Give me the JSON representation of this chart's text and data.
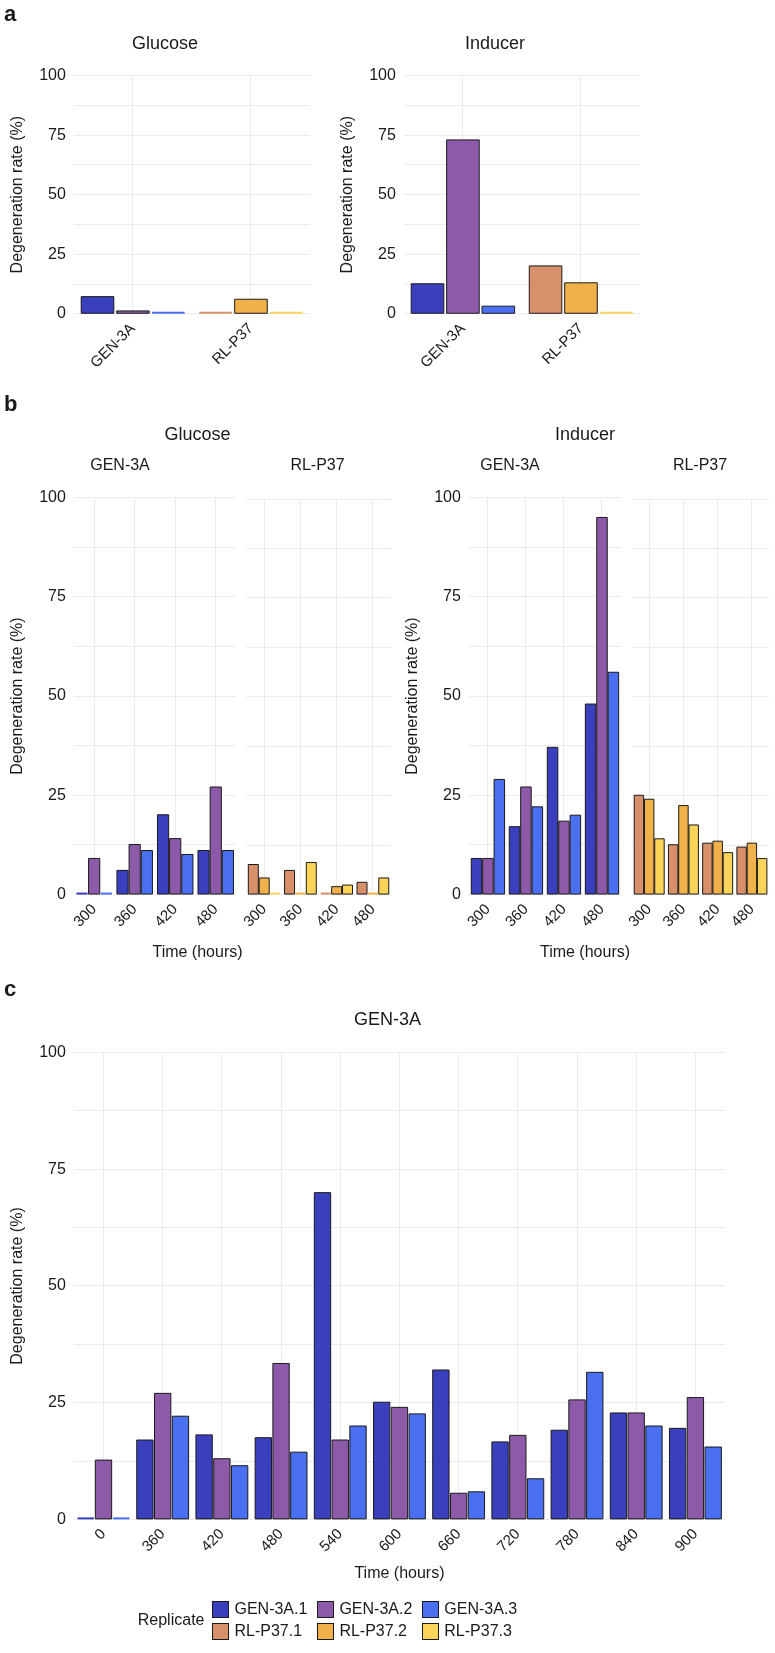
{
  "chart_data": [
    {
      "type": "bar",
      "annotations": [
        "a"
      ],
      "title": "Glucose",
      "ylabel": "Degeneration rate (%)",
      "categories": [
        "GEN-3A",
        "RL-P37"
      ],
      "series": [
        {
          "color": "#3a3fbd",
          "values": [
            7.2,
            null
          ]
        },
        {
          "color": "#8c5aa8",
          "values": [
            1.2,
            null
          ]
        },
        {
          "color": "#4a6ff0",
          "values": [
            0,
            null
          ]
        },
        {
          "color": "#d8906a",
          "values": [
            null,
            0
          ]
        },
        {
          "color": "#f0b04a",
          "values": [
            null,
            6.1
          ]
        },
        {
          "color": "#fcd45a",
          "values": [
            null,
            0
          ]
        }
      ],
      "ylim": [
        0,
        100
      ],
      "yticks": [
        0,
        {
          "value": 12.5,
          "label": null
        },
        25,
        {
          "value": 37.5,
          "label": null
        },
        50,
        {
          "value": 62.5,
          "label": null
        },
        75,
        {
          "value": 87.5,
          "label": null
        },
        100
      ],
      "grid": true
    },
    {
      "type": "bar",
      "title": "Inducer",
      "ylabel": "Degeneration rate (%)",
      "categories": [
        "GEN-3A",
        "RL-P37"
      ],
      "series": [
        {
          "color": "#3a3fbd",
          "values": [
            12.6,
            null
          ]
        },
        {
          "color": "#8c5aa8",
          "values": [
            73,
            null
          ]
        },
        {
          "color": "#4a6ff0",
          "values": [
            3.2,
            null
          ]
        },
        {
          "color": "#d8906a",
          "values": [
            null,
            20.1
          ]
        },
        {
          "color": "#f0b04a",
          "values": [
            null,
            13
          ]
        },
        {
          "color": "#fcd45a",
          "values": [
            null,
            0
          ]
        }
      ],
      "ylim": [
        0,
        100
      ],
      "yticks": [
        0,
        {
          "value": 12.5,
          "label": null
        },
        25,
        {
          "value": 37.5,
          "label": null
        },
        50,
        {
          "value": 62.5,
          "label": null
        },
        75,
        {
          "value": 87.5,
          "label": null
        },
        100
      ],
      "grid": true
    },
    {
      "type": "bar",
      "annotations": [
        "b"
      ],
      "title": "Glucose",
      "subtitle": "GEN-3A",
      "xlabel": "Time (hours)",
      "ylabel": "Degeneration rate (%)",
      "categories": [
        "300",
        "360",
        "420",
        "480"
      ],
      "series": [
        {
          "color": "#3a3fbd",
          "values": [
            0,
            6.1,
            20.1,
            11.1
          ]
        },
        {
          "color": "#8c5aa8",
          "values": [
            9.1,
            12.6,
            14.1,
            27.1
          ]
        },
        {
          "color": "#4a6ff0",
          "values": [
            0,
            11.1,
            10.1,
            11.1
          ]
        }
      ],
      "ylim": [
        0,
        100
      ],
      "yticks": [
        0,
        {
          "value": 12.5,
          "label": null
        },
        25,
        {
          "value": 37.5,
          "label": null
        },
        50,
        {
          "value": 62.5,
          "label": null
        },
        75,
        {
          "value": 87.5,
          "label": null
        },
        100
      ],
      "grid": true
    },
    {
      "type": "bar",
      "subtitle": "RL-P37",
      "categories": [
        "300",
        "360",
        "420",
        "480"
      ],
      "series": [
        {
          "color": "#d8906a",
          "values": [
            7.6,
            6.1,
            0,
            3.1
          ]
        },
        {
          "color": "#f0b04a",
          "values": [
            4.2,
            0,
            2.0,
            0
          ]
        },
        {
          "color": "#fcd45a",
          "values": [
            0,
            8.1,
            2.4,
            4.2
          ]
        }
      ],
      "ylim": [
        0,
        100
      ],
      "yticks": [
        0,
        {
          "value": 12.5,
          "label": null
        },
        25,
        {
          "value": 37.5,
          "label": null
        },
        50,
        {
          "value": 62.5,
          "label": null
        },
        75,
        {
          "value": 87.5,
          "label": null
        },
        100
      ],
      "grid": true,
      "tick_labels": "x"
    },
    {
      "type": "bar",
      "title": "Inducer",
      "subtitle": "GEN-3A",
      "xlabel": "Time (hours)",
      "ylabel": "Degeneration rate (%)",
      "categories": [
        "300",
        "360",
        "420",
        "480"
      ],
      "series": [
        {
          "color": "#3a3fbd",
          "values": [
            9.1,
            17.1,
            37.1,
            48
          ]
        },
        {
          "color": "#8c5aa8",
          "values": [
            9.1,
            27.1,
            18.5,
            95
          ]
        },
        {
          "color": "#4a6ff0",
          "values": [
            29,
            22.1,
            20,
            56
          ]
        }
      ],
      "ylim": [
        0,
        100
      ],
      "yticks": [
        0,
        {
          "value": 12.5,
          "label": null
        },
        25,
        {
          "value": 37.5,
          "label": null
        },
        50,
        {
          "value": 62.5,
          "label": null
        },
        75,
        {
          "value": 87.5,
          "label": null
        },
        100
      ],
      "grid": true
    },
    {
      "type": "bar",
      "subtitle": "RL-P37",
      "categories": [
        "300",
        "360",
        "420",
        "480"
      ],
      "series": [
        {
          "color": "#d8906a",
          "values": [
            25.1,
            12.6,
            13,
            12
          ]
        },
        {
          "color": "#f0b04a",
          "values": [
            24.1,
            22.5,
            13.5,
            13
          ]
        },
        {
          "color": "#fcd45a",
          "values": [
            14.1,
            17.6,
            10.6,
            9.1
          ]
        }
      ],
      "ylim": [
        0,
        100
      ],
      "yticks": [
        0,
        {
          "value": 12.5,
          "label": null
        },
        25,
        {
          "value": 37.5,
          "label": null
        },
        50,
        {
          "value": 62.5,
          "label": null
        },
        75,
        {
          "value": 87.5,
          "label": null
        },
        100
      ],
      "grid": true,
      "tick_labels": "x"
    },
    {
      "type": "bar",
      "annotations": [
        "c"
      ],
      "title": "GEN-3A",
      "xlabel": "Time (hours)",
      "ylabel": "Degeneration rate (%)",
      "legend": "bottom",
      "legend_title": "Replicate",
      "categories": [
        "0",
        "360",
        "420",
        "480",
        "540",
        "600",
        "660",
        "720",
        "780",
        "840",
        "900"
      ],
      "series": [
        {
          "name": "GEN-3A.1",
          "color": "#3a3fbd",
          "values": [
            0,
            17,
            18.1,
            17.5,
            70,
            25.1,
            32,
            16.6,
            19.1,
            22.8,
            19.5
          ]
        },
        {
          "name": "GEN-3A.2",
          "color": "#8c5aa8",
          "values": [
            12.7,
            27,
            13,
            33.4,
            17,
            24,
            5.6,
            18,
            25.6,
            22.8,
            26.1
          ]
        },
        {
          "name": "GEN-3A.3",
          "color": "#4a6ff0",
          "values": [
            0,
            22.1,
            11.5,
            14.4,
            20,
            22.6,
            5.9,
            8.7,
            31.5,
            20,
            15.5
          ]
        },
        {
          "name": "RL-P37.1",
          "color": "#d8906a",
          "values": [
            null,
            null,
            null,
            null,
            null,
            null,
            null,
            null,
            null,
            null,
            null
          ]
        },
        {
          "name": "RL-P37.2",
          "color": "#f0b04a",
          "values": [
            null,
            null,
            null,
            null,
            null,
            null,
            null,
            null,
            null,
            null,
            null
          ]
        },
        {
          "name": "RL-P37.3",
          "color": "#fcd45a",
          "values": [
            null,
            null,
            null,
            null,
            null,
            null,
            null,
            null,
            null,
            null,
            null
          ]
        }
      ],
      "ylim": [
        0,
        100
      ],
      "yticks": [
        0,
        {
          "value": 12.5,
          "label": null
        },
        25,
        {
          "value": 37.5,
          "label": null
        },
        50,
        {
          "value": 62.5,
          "label": null
        },
        75,
        {
          "value": 87.5,
          "label": null
        },
        100
      ],
      "grid": true
    }
  ]
}
